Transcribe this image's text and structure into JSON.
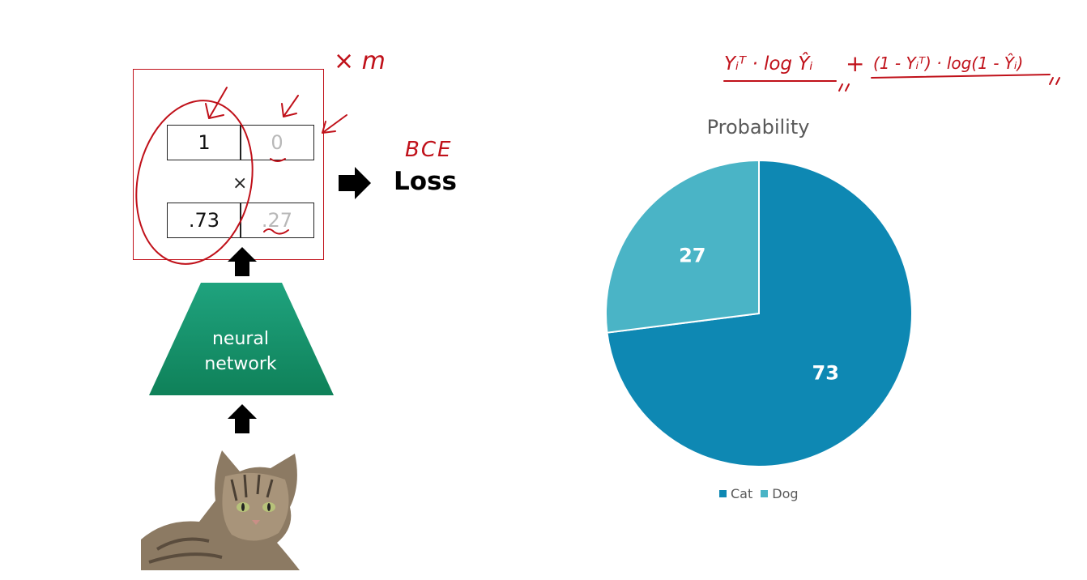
{
  "annotations": {
    "times_m": "× m",
    "bce": "BCE",
    "formula_left": "Yᵢᵀ · log Ŷᵢ",
    "formula_plus": "+",
    "formula_right": "(1 - Yᵢᵀ) · log(1 - Ŷᵢ)"
  },
  "diagram": {
    "target": [
      "1",
      "0"
    ],
    "prediction": [
      ".73",
      ".27"
    ],
    "times_symbol": "×",
    "loss_label": "Loss",
    "network_label": [
      "neural",
      "network"
    ]
  },
  "colors": {
    "cat": "#0e88b3",
    "dog": "#4ab4c6",
    "network_top": "#1fa37e",
    "network_bottom": "#0f8159",
    "annotation_red": "#c0111a"
  },
  "chart_data": {
    "type": "pie",
    "title": "Probability",
    "categories": [
      "Cat",
      "Dog"
    ],
    "values": [
      73,
      27
    ],
    "data_labels": [
      "73",
      "27"
    ],
    "legend_position": "bottom"
  }
}
